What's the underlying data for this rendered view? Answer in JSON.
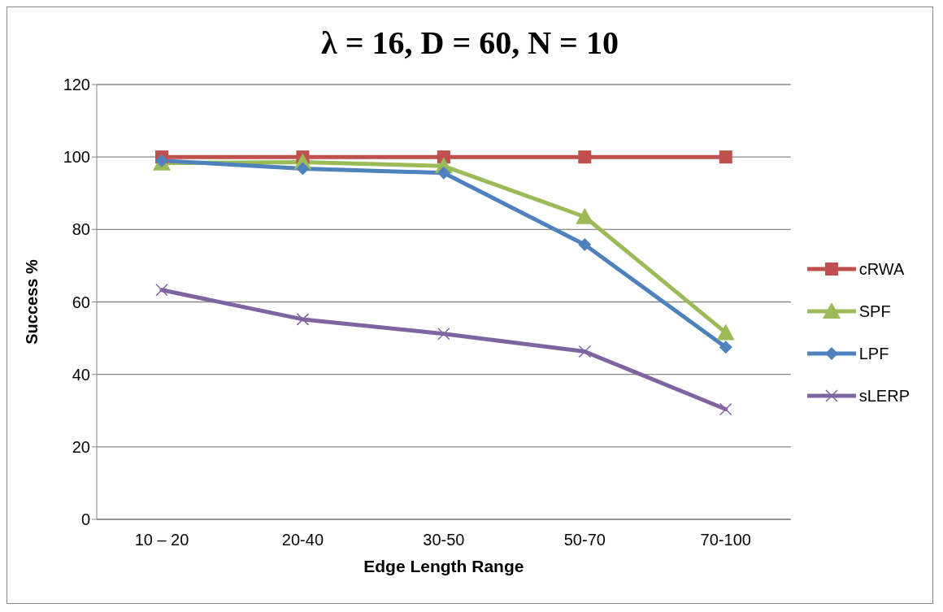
{
  "chart_data": {
    "type": "line",
    "title": "λ = 16, D = 60, N = 10",
    "xlabel": "Edge Length Range",
    "ylabel": "Success %",
    "categories": [
      "10 – 20",
      "20-40",
      "30-50",
      "50-70",
      "70-100"
    ],
    "series": [
      {
        "name": "cRWA",
        "color": "#c0504d",
        "marker": "square",
        "values": [
          100,
          100,
          100,
          100,
          100
        ]
      },
      {
        "name": "SPF",
        "color": "#9bbb59",
        "marker": "triangle",
        "values": [
          98.3,
          98.6,
          97.5,
          83.5,
          51.5
        ]
      },
      {
        "name": "LPF",
        "color": "#4f81bd",
        "marker": "diamond",
        "values": [
          99,
          96.8,
          95.6,
          75.8,
          47.5
        ]
      },
      {
        "name": "sLERP",
        "color": "#8064a2",
        "marker": "cross",
        "values": [
          63.3,
          55.2,
          51.2,
          46.3,
          30.4
        ]
      }
    ],
    "ylim": [
      0,
      120
    ],
    "yticks": [
      0,
      20,
      40,
      60,
      80,
      100,
      120
    ],
    "grid": "y",
    "legend": "right",
    "line_style": "solid"
  }
}
